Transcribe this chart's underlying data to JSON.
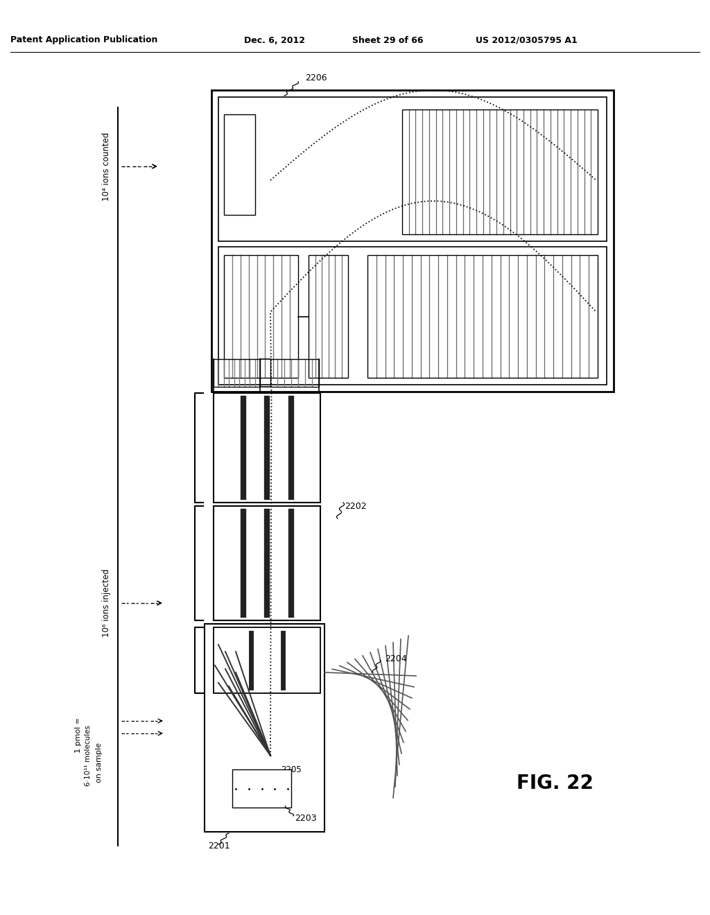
{
  "title_left": "Patent Application Publication",
  "title_mid": "Dec. 6, 2012",
  "title_sheet": "Sheet 29 of 66",
  "title_right": "US 2012/0305795 A1",
  "fig_label": "FIG. 22",
  "label_2201": "2201",
  "label_2202": "2202",
  "label_2203": "2203",
  "label_2204": "2204",
  "label_2205": "2205",
  "label_2206": "2206",
  "ylabel_top": "10⁴ ions counted",
  "ylabel_mid": "10⁶ ions injected",
  "ylabel_bot1": "1 pmol =",
  "ylabel_bot2": "6·10¹¹ molecules",
  "ylabel_bot3": "on sample",
  "bg_color": "#ffffff"
}
